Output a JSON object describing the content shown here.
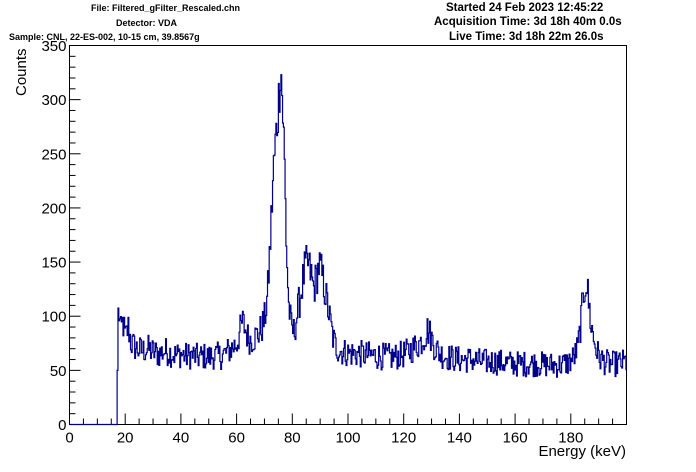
{
  "header": {
    "file": "File: Filtered_gFilter_Rescaled.chn",
    "detector": "Detector: VDA",
    "sample": "Sample: CNL, 22-ES-002, 10-15 cm, 39.8567g",
    "started": "Started 24 Feb 2023 12:45:22",
    "acquisition_time": "Acquisition Time: 3d 18h 40m 0.0s",
    "live_time": "Live Time: 3d 18h 22m 26.0s"
  },
  "colors": {
    "series": "#00008b",
    "axis": "#000000",
    "background": "#ffffff"
  },
  "chart_data": {
    "type": "line",
    "xlabel": "Energy (keV)",
    "ylabel": "Counts",
    "xlim": [
      0,
      200
    ],
    "ylim": [
      0,
      350
    ],
    "xticks": [
      0,
      20,
      40,
      60,
      80,
      100,
      120,
      140,
      160,
      180
    ],
    "yticks": [
      0,
      50,
      100,
      150,
      200,
      250,
      300,
      350
    ],
    "grid": false,
    "legend": "none",
    "points": [
      [
        0,
        0
      ],
      [
        17.0,
        0
      ],
      [
        17.2,
        100
      ],
      [
        17.6,
        105
      ],
      [
        18.3,
        85
      ],
      [
        19,
        95
      ],
      [
        20,
        80
      ],
      [
        21,
        90
      ],
      [
        22,
        75
      ],
      [
        24,
        70
      ],
      [
        26,
        68
      ],
      [
        28,
        70
      ],
      [
        30,
        67
      ],
      [
        32,
        65
      ],
      [
        34,
        68
      ],
      [
        36,
        66
      ],
      [
        38,
        64
      ],
      [
        40,
        65
      ],
      [
        42,
        63
      ],
      [
        44,
        64
      ],
      [
        46,
        62
      ],
      [
        48,
        63
      ],
      [
        50,
        62
      ],
      [
        52,
        64
      ],
      [
        54,
        63
      ],
      [
        56,
        66
      ],
      [
        58,
        70
      ],
      [
        60,
        75
      ],
      [
        61,
        85
      ],
      [
        62,
        95
      ],
      [
        63,
        88
      ],
      [
        64,
        80
      ],
      [
        65,
        78
      ],
      [
        66,
        80
      ],
      [
        67,
        82
      ],
      [
        68,
        85
      ],
      [
        69,
        90
      ],
      [
        70,
        98
      ],
      [
        71,
        120
      ],
      [
        72,
        170
      ],
      [
        73,
        230
      ],
      [
        74,
        265
      ],
      [
        75,
        300
      ],
      [
        75.7,
        335
      ],
      [
        76.3,
        300
      ],
      [
        77,
        250
      ],
      [
        77.8,
        160
      ],
      [
        78.6,
        110
      ],
      [
        79.5,
        90
      ],
      [
        80.5,
        85
      ],
      [
        81.5,
        100
      ],
      [
        82.5,
        115
      ],
      [
        83.5,
        130
      ],
      [
        84.5,
        145
      ],
      [
        85.5,
        148
      ],
      [
        86.5,
        140
      ],
      [
        87.5,
        125
      ],
      [
        88.5,
        135
      ],
      [
        89.5,
        148
      ],
      [
        90.5,
        138
      ],
      [
        91.5,
        125
      ],
      [
        92.5,
        110
      ],
      [
        93.5,
        95
      ],
      [
        94.5,
        80
      ],
      [
        95.5,
        72
      ],
      [
        97,
        68
      ],
      [
        100,
        66
      ],
      [
        104,
        65
      ],
      [
        108,
        64
      ],
      [
        112,
        63
      ],
      [
        116,
        62
      ],
      [
        120,
        65
      ],
      [
        122,
        68
      ],
      [
        124,
        72
      ],
      [
        126,
        76
      ],
      [
        127.5,
        82
      ],
      [
        128.5,
        88
      ],
      [
        129.5,
        82
      ],
      [
        131,
        72
      ],
      [
        133,
        65
      ],
      [
        136,
        62
      ],
      [
        140,
        60
      ],
      [
        144,
        60
      ],
      [
        148,
        58
      ],
      [
        152,
        58
      ],
      [
        156,
        57
      ],
      [
        160,
        56
      ],
      [
        164,
        56
      ],
      [
        168,
        56
      ],
      [
        172,
        55
      ],
      [
        176,
        55
      ],
      [
        179,
        57
      ],
      [
        181,
        62
      ],
      [
        182.5,
        72
      ],
      [
        183.5,
        95
      ],
      [
        184.5,
        120
      ],
      [
        185.3,
        135
      ],
      [
        186,
        120
      ],
      [
        187,
        95
      ],
      [
        188,
        80
      ],
      [
        189,
        70
      ],
      [
        190,
        62
      ],
      [
        192,
        58
      ],
      [
        194,
        56
      ],
      [
        196,
        56
      ],
      [
        198,
        57
      ],
      [
        200,
        58
      ]
    ]
  }
}
